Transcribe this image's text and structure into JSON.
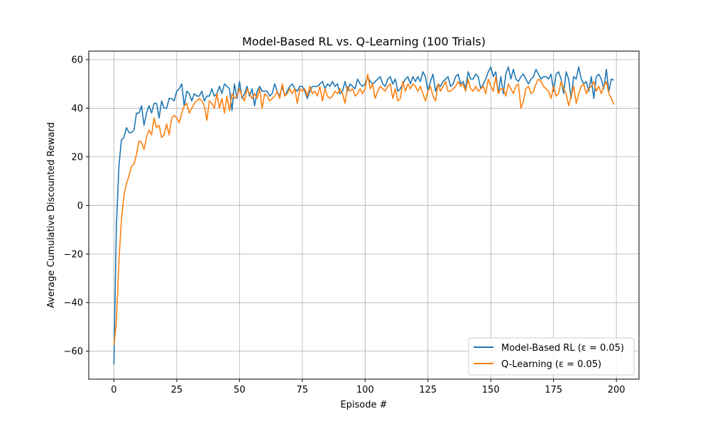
{
  "chart_data": {
    "type": "line",
    "title": "Model-Based RL vs. Q-Learning (100 Trials)",
    "xlabel": "Episode #",
    "ylabel": "Average Cumulative Discounted Reward",
    "xlim": [
      -10,
      209
    ],
    "ylim": [
      -71.5,
      63.5
    ],
    "xticks": [
      0,
      25,
      50,
      75,
      100,
      125,
      150,
      175,
      200
    ],
    "yticks": [
      -60,
      -40,
      -20,
      0,
      20,
      40,
      60
    ],
    "grid": true,
    "legend_position": "lower-right",
    "series": [
      {
        "name": "Model-Based RL (ε = 0.05)",
        "color": "#1f77b4",
        "values": [
          -65.5,
          -8,
          16,
          27,
          28,
          32,
          30,
          30,
          31,
          38,
          38,
          41,
          33,
          38,
          41,
          38,
          42,
          42,
          36,
          43,
          40,
          40,
          44,
          44,
          43,
          47,
          48,
          50,
          41,
          47,
          46,
          43,
          46,
          45,
          45,
          47,
          43,
          45,
          45,
          48,
          45,
          46,
          49,
          46,
          50,
          49,
          48,
          39,
          50,
          44,
          51,
          44,
          46,
          49,
          45,
          48,
          41,
          47,
          49,
          47,
          47,
          47,
          45,
          46,
          50,
          47,
          45,
          49,
          45,
          47,
          49,
          50,
          48,
          47,
          49,
          49,
          47,
          44,
          47,
          49,
          49,
          49,
          50,
          51,
          48,
          50,
          49,
          51,
          49,
          50,
          46,
          47,
          51,
          47,
          50,
          49,
          48,
          52,
          50,
          49,
          50,
          53,
          51,
          50,
          51,
          52,
          53,
          50,
          49,
          52,
          53,
          50,
          52,
          47,
          48,
          50,
          52,
          53,
          50,
          53,
          51,
          53,
          51,
          55,
          53,
          47,
          51,
          54,
          47,
          50,
          49,
          51,
          52,
          53,
          49,
          50,
          53,
          54,
          50,
          51,
          48,
          55,
          52,
          52,
          54,
          53,
          48,
          50,
          52,
          55,
          57,
          53,
          55,
          46,
          53,
          46,
          54,
          57,
          52,
          56,
          52,
          51,
          53,
          54,
          52,
          50,
          52,
          53,
          56,
          54,
          52,
          53,
          53,
          52,
          54,
          47,
          54,
          55,
          52,
          46,
          55,
          52,
          44,
          53,
          52,
          57,
          52,
          50,
          51,
          47,
          53,
          44,
          53,
          54,
          52,
          48,
          56,
          47,
          52,
          51.5
        ]
      },
      {
        "name": "Q-Learning (ε = 0.05)",
        "color": "#ff7f0e",
        "values": [
          -57.5,
          -48,
          -23,
          -6,
          4,
          9,
          12,
          16,
          17,
          21,
          26.5,
          26,
          23,
          28,
          31,
          29,
          36,
          32,
          33,
          28,
          29,
          33.5,
          29,
          36,
          37,
          36,
          34,
          38,
          41,
          42,
          38,
          40,
          42,
          43,
          44,
          43,
          41,
          35,
          43,
          42,
          40,
          46,
          40,
          44,
          38,
          45,
          39,
          46,
          44,
          45,
          48,
          45,
          43,
          48,
          46,
          44,
          46,
          44,
          48,
          40,
          46,
          45,
          43,
          44,
          45,
          47,
          44,
          50,
          45,
          46,
          48,
          46,
          48,
          42,
          48,
          47,
          48,
          45,
          49,
          46,
          47,
          45,
          49,
          43,
          48,
          45,
          44,
          45,
          47,
          46,
          48,
          46,
          42,
          49,
          47,
          48,
          45,
          46,
          48,
          46,
          48,
          54,
          48,
          50,
          44,
          47,
          49,
          48,
          47,
          49,
          50,
          44,
          48,
          43,
          44,
          51,
          47,
          50,
          48,
          50,
          49,
          47,
          49,
          46,
          43,
          47,
          49,
          45,
          43,
          50,
          47,
          49,
          51,
          47,
          47,
          48,
          49,
          51,
          49,
          50,
          47,
          52,
          48,
          47,
          49,
          47,
          48,
          49,
          46,
          52,
          49,
          47,
          53,
          46,
          48,
          48,
          45,
          50,
          48,
          46,
          49,
          50,
          40,
          43,
          48,
          49,
          46,
          47,
          50,
          52,
          51,
          49,
          48,
          47,
          44,
          49,
          45,
          46,
          51,
          48,
          46,
          41,
          45,
          49,
          42,
          46,
          49,
          50,
          46,
          48,
          49,
          51,
          47,
          49,
          46,
          49,
          51,
          46,
          44,
          41.5
        ]
      }
    ]
  }
}
